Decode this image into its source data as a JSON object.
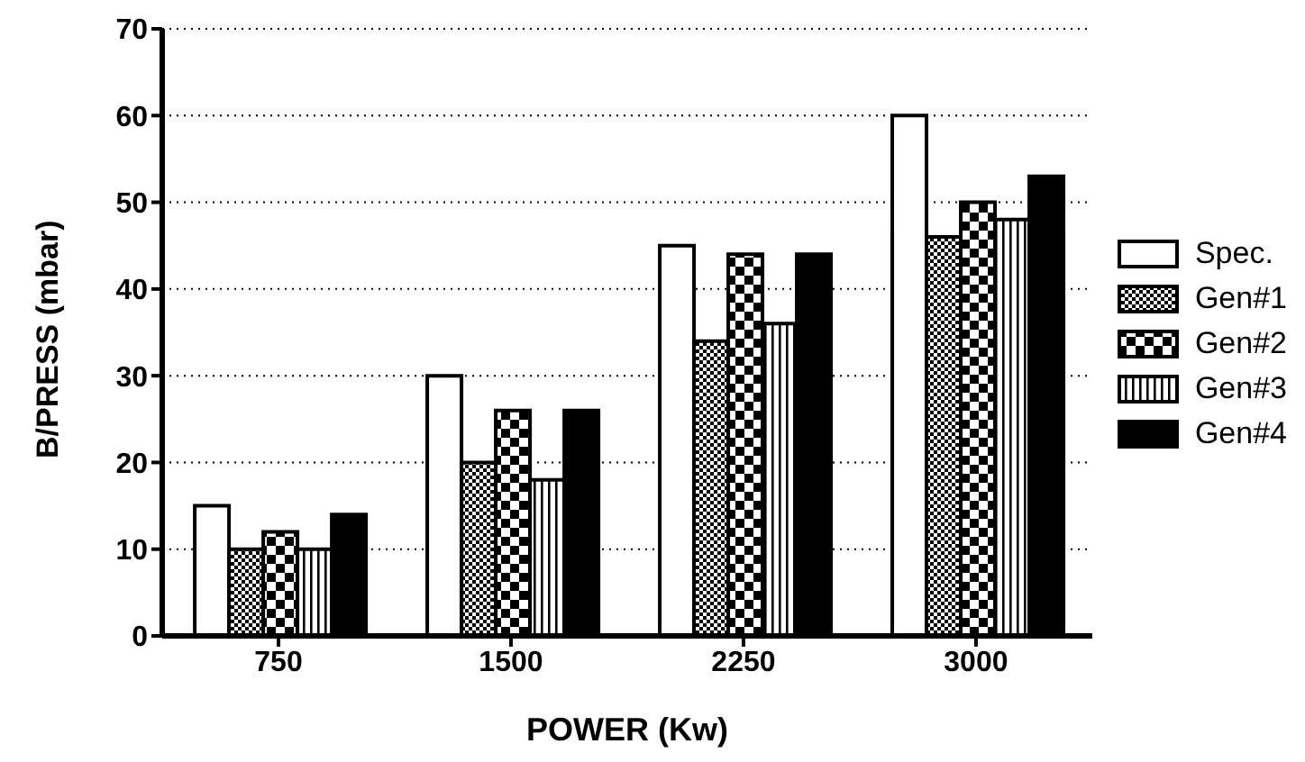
{
  "chart_data": {
    "type": "bar",
    "xlabel": "POWER (Kw)",
    "ylabel": "B/PRESS (mbar)",
    "categories": [
      "750",
      "1500",
      "2250",
      "3000"
    ],
    "series": [
      {
        "name": "Spec.",
        "color": "#ffffff",
        "values": [
          15,
          30,
          45,
          60
        ]
      },
      {
        "name": "Gen#1",
        "color": "#000000",
        "values": [
          10,
          20,
          34,
          46
        ]
      },
      {
        "name": "Gen#2",
        "color": "#000000",
        "values": [
          12,
          26,
          44,
          50
        ]
      },
      {
        "name": "Gen#3",
        "color": "#000000",
        "values": [
          10,
          18,
          36,
          48
        ]
      },
      {
        "name": "Gen#4",
        "color": "#000000",
        "values": [
          14,
          26,
          44,
          53
        ]
      }
    ],
    "ylim": [
      0,
      70
    ],
    "yticks": [
      0,
      10,
      20,
      30,
      40,
      50,
      60,
      70
    ],
    "grid": "y",
    "legend": "right"
  }
}
